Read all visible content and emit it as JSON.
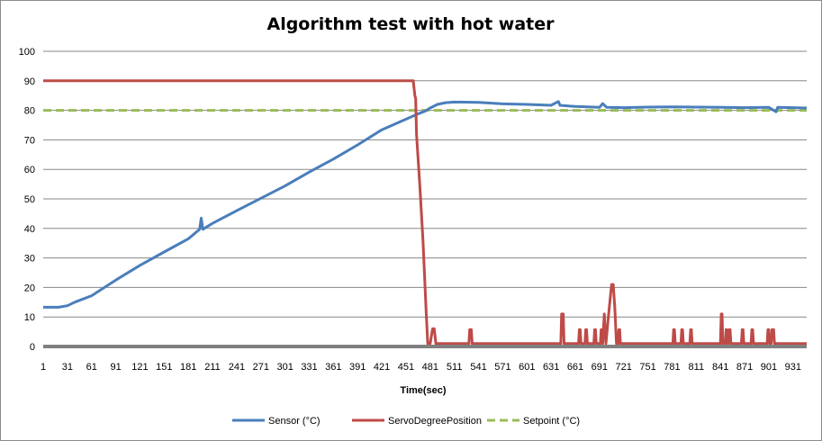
{
  "chart_data": {
    "type": "line",
    "title": "Algorithm test with hot water",
    "xlabel": "Time(sec)",
    "ylabel": "",
    "ylim": [
      0,
      100
    ],
    "yticks": [
      0,
      10,
      20,
      30,
      40,
      50,
      60,
      70,
      80,
      90,
      100
    ],
    "xticks": [
      1,
      31,
      61,
      91,
      121,
      151,
      181,
      211,
      241,
      271,
      301,
      331,
      361,
      391,
      421,
      451,
      481,
      511,
      541,
      571,
      601,
      631,
      661,
      691,
      721,
      751,
      781,
      811,
      841,
      871,
      901,
      931
    ],
    "xlim": [
      1,
      948
    ],
    "grid": true,
    "legend_position": "bottom",
    "series": [
      {
        "name": "Sensor (°C)",
        "color": "#4a7ebb",
        "style": "solid",
        "x": [
          1,
          20,
          31,
          40,
          61,
          91,
          121,
          151,
          181,
          195,
          197,
          199,
          211,
          241,
          271,
          301,
          331,
          361,
          391,
          421,
          451,
          465,
          475,
          481,
          490,
          500,
          511,
          541,
          571,
          601,
          631,
          640,
          642,
          661,
          691,
          695,
          700,
          721,
          751,
          781,
          811,
          841,
          871,
          901,
          910,
          912,
          931,
          948
        ],
        "values": [
          13.3,
          13.3,
          13.8,
          15,
          17.2,
          22.5,
          27.5,
          32,
          36.5,
          39.7,
          43.5,
          39.7,
          41.7,
          46,
          50.2,
          54.4,
          59.1,
          63.5,
          68.3,
          73.4,
          77,
          78.7,
          79.8,
          80.8,
          82,
          82.6,
          82.8,
          82.7,
          82.2,
          82,
          81.7,
          83,
          81.7,
          81.3,
          81,
          82.3,
          81,
          80.9,
          81.1,
          81.2,
          81.1,
          81,
          80.9,
          81,
          79.5,
          81,
          80.9,
          80.8
        ]
      },
      {
        "name": "ServoDegreePosition",
        "color": "#be4b48",
        "style": "solid",
        "x": [
          1,
          460,
          462,
          463,
          464,
          468,
          472,
          476,
          478,
          481,
          484,
          486,
          488,
          490,
          492,
          529,
          530,
          531,
          532,
          533,
          643,
          644,
          645,
          646,
          647,
          665,
          666,
          667,
          668,
          673,
          674,
          675,
          676,
          684,
          685,
          686,
          687,
          692,
          693,
          694,
          695,
          697,
          699,
          702,
          706,
          708,
          710,
          712,
          714,
          715,
          716,
          717,
          782,
          783,
          784,
          785,
          792,
          793,
          794,
          795,
          803,
          804,
          805,
          806,
          841,
          842,
          843,
          844,
          845,
          847,
          848,
          849,
          850,
          851,
          852,
          853,
          854,
          855,
          867,
          868,
          869,
          870,
          879,
          880,
          881,
          882,
          899,
          900,
          901,
          902,
          904,
          905,
          906,
          907,
          908,
          948
        ],
        "values": [
          90,
          90,
          85,
          84,
          72,
          55,
          36,
          12,
          1,
          1,
          6,
          6,
          1,
          1,
          1,
          1,
          5.7,
          5.7,
          5.7,
          1,
          1,
          11,
          11,
          11,
          1,
          1,
          5.7,
          5.7,
          1,
          1,
          5.7,
          5.7,
          1,
          1,
          5.7,
          5.7,
          1,
          1,
          5.7,
          5.7,
          1,
          11,
          1,
          10,
          21,
          21,
          13,
          1,
          1,
          5.7,
          5.7,
          1,
          1,
          5.7,
          5.7,
          1,
          1,
          5.7,
          5.7,
          1,
          1,
          5.7,
          5.7,
          1,
          1,
          11,
          11,
          1,
          1,
          1,
          5.7,
          5.7,
          1,
          1,
          5.7,
          5.7,
          1,
          1,
          1,
          5.7,
          5.7,
          1,
          1,
          5.7,
          5.7,
          1,
          1,
          5.7,
          5.7,
          1,
          1,
          5.7,
          5.7,
          5.7,
          1,
          1
        ]
      },
      {
        "name": "Setpoint (°C)",
        "color": "#9bbb59",
        "style": "dashed",
        "x": [
          1,
          948
        ],
        "values": [
          80,
          80
        ]
      }
    ]
  }
}
